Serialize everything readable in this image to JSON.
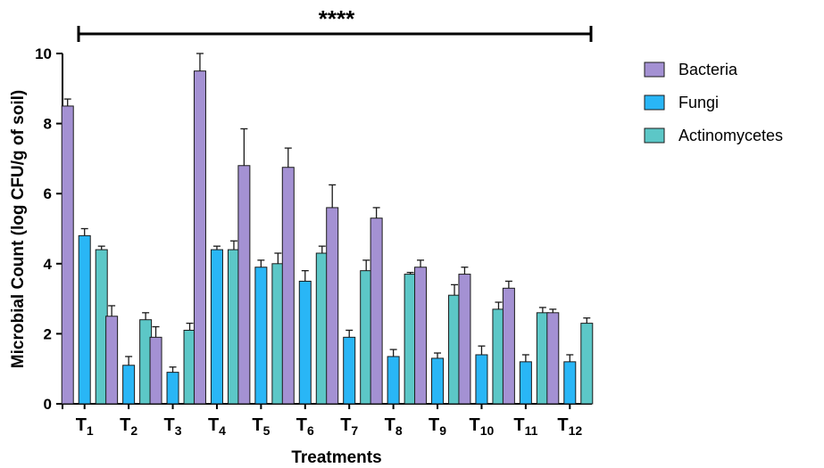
{
  "chart_data": {
    "type": "bar",
    "xlabel": "Treatments",
    "ylabel": "Microbial Count (log CFU/g of soil)",
    "ylim": [
      0,
      10
    ],
    "yticks": [
      "0",
      "2",
      "4",
      "6",
      "8",
      "10"
    ],
    "significance": "****",
    "categories": [
      {
        "base": "T",
        "sub": "1"
      },
      {
        "base": "T",
        "sub": "2"
      },
      {
        "base": "T",
        "sub": "3"
      },
      {
        "base": "T",
        "sub": "4"
      },
      {
        "base": "T",
        "sub": "5"
      },
      {
        "base": "T",
        "sub": "6"
      },
      {
        "base": "T",
        "sub": "7"
      },
      {
        "base": "T",
        "sub": "8"
      },
      {
        "base": "T",
        "sub": "9"
      },
      {
        "base": "T",
        "sub": "10"
      },
      {
        "base": "T",
        "sub": "11"
      },
      {
        "base": "T",
        "sub": "12"
      }
    ],
    "series": [
      {
        "name": "Bacteria",
        "color": "#a491d3",
        "values": [
          8.5,
          2.5,
          1.9,
          9.5,
          6.8,
          6.75,
          5.6,
          5.3,
          3.9,
          3.7,
          3.3,
          2.6
        ],
        "errors": [
          0.2,
          0.3,
          0.3,
          0.5,
          1.05,
          0.55,
          0.65,
          0.3,
          0.2,
          0.2,
          0.2,
          0.1
        ]
      },
      {
        "name": "Fungi",
        "color": "#29b6f6",
        "values": [
          4.8,
          1.1,
          0.9,
          4.4,
          3.9,
          3.5,
          1.9,
          1.35,
          1.3,
          1.4,
          1.2,
          1.2
        ],
        "errors": [
          0.2,
          0.25,
          0.15,
          0.1,
          0.2,
          0.3,
          0.2,
          0.2,
          0.15,
          0.25,
          0.2,
          0.2
        ]
      },
      {
        "name": "Actinomycetes",
        "color": "#5cc7c7",
        "values": [
          4.4,
          2.4,
          2.1,
          4.4,
          4.0,
          4.3,
          3.8,
          3.7,
          3.1,
          2.7,
          2.6,
          2.3
        ],
        "errors": [
          0.1,
          0.2,
          0.2,
          0.25,
          0.3,
          0.2,
          0.3,
          0.05,
          0.3,
          0.2,
          0.15,
          0.15
        ]
      }
    ],
    "legend_position": "top-right"
  }
}
